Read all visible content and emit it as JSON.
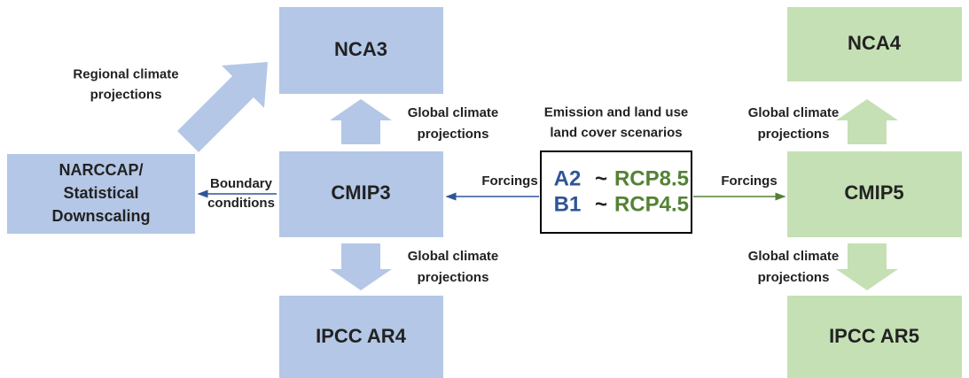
{
  "nodes": [
    {
      "label": [
        "NCA3"
      ]
    },
    {
      "label": [
        "CMIP3"
      ]
    },
    {
      "label": [
        "IPCC AR4"
      ]
    },
    {
      "label": [
        "NARCCAP/",
        "Statistical",
        "Downscaling"
      ]
    },
    {
      "label": [
        "NCA4"
      ]
    },
    {
      "label": [
        "CMIP5"
      ]
    },
    {
      "label": [
        "IPCC AR5"
      ]
    }
  ],
  "scenarios": {
    "title": [
      "Emission and land use",
      "land cover scenarios"
    ],
    "rows": [
      [
        "A2",
        "~",
        "RCP8.5"
      ],
      [
        "B1",
        "~",
        "RCP4.5"
      ]
    ]
  },
  "edges": [
    {
      "label": [
        "Regional climate",
        "projections"
      ]
    },
    {
      "label": [
        "Global climate",
        "projections"
      ]
    },
    {
      "label": [
        "Global climate",
        "projections"
      ]
    },
    {
      "label": [
        "Boundary",
        "conditions"
      ]
    },
    {
      "label": [
        "Forcings"
      ]
    },
    {
      "label": [
        "Forcings"
      ]
    },
    {
      "label": [
        "Global climate",
        "projections"
      ]
    },
    {
      "label": [
        "Global climate",
        "projections"
      ]
    }
  ]
}
